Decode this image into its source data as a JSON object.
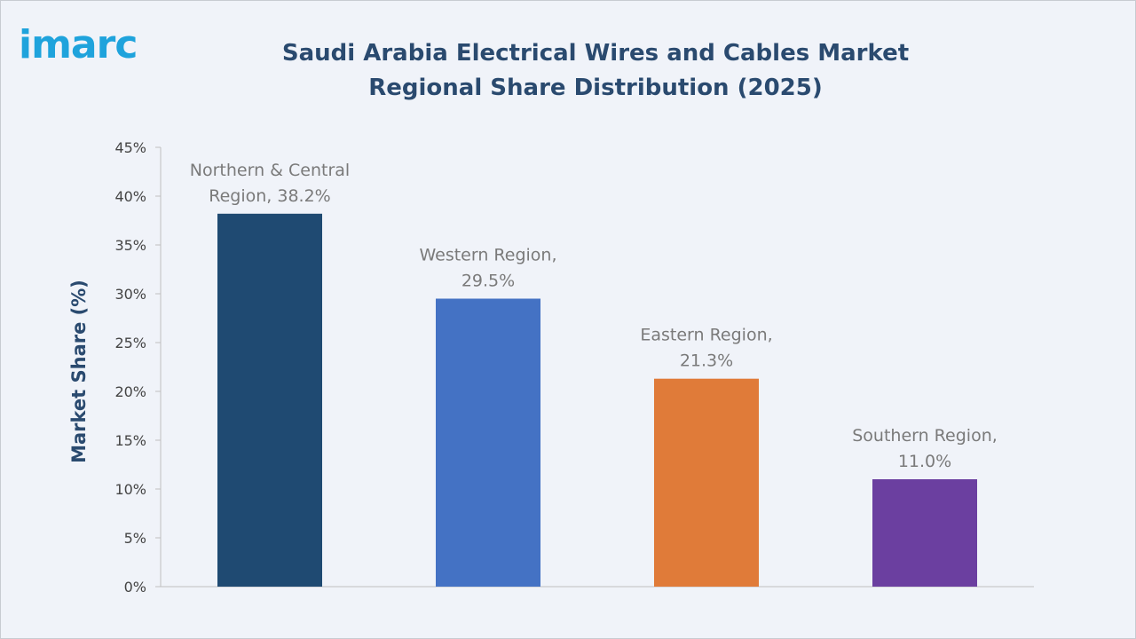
{
  "brand": {
    "logo_text": "imarc",
    "logo_color": "#1fa3dc"
  },
  "chart_data": {
    "type": "bar",
    "title": "Saudi Arabia Electrical Wires and Cables Market Regional Share Distribution (2025)",
    "xlabel": "",
    "ylabel": "Market Share (%)",
    "ylim": [
      0,
      45
    ],
    "yticks": [
      0,
      5,
      10,
      15,
      20,
      25,
      30,
      35,
      40,
      45
    ],
    "ytick_labels": [
      "0%",
      "5%",
      "10%",
      "15%",
      "20%",
      "25%",
      "30%",
      "35%",
      "40%",
      "45%"
    ],
    "categories": [
      "Northern & Central Region",
      "Western Region",
      "Eastern Region",
      "Southern Region"
    ],
    "values": [
      38.2,
      29.5,
      21.3,
      11.0
    ],
    "data_labels": [
      [
        "Northern & Central",
        "Region, 38.2%"
      ],
      [
        "Western Region,",
        "29.5%"
      ],
      [
        "Eastern Region,",
        "21.3%"
      ],
      [
        "Southern Region,",
        "11.0%"
      ]
    ],
    "colors": [
      "#1f4a72",
      "#4472c4",
      "#e07b39",
      "#6b3fa0"
    ],
    "grid": false,
    "legend": "none"
  }
}
